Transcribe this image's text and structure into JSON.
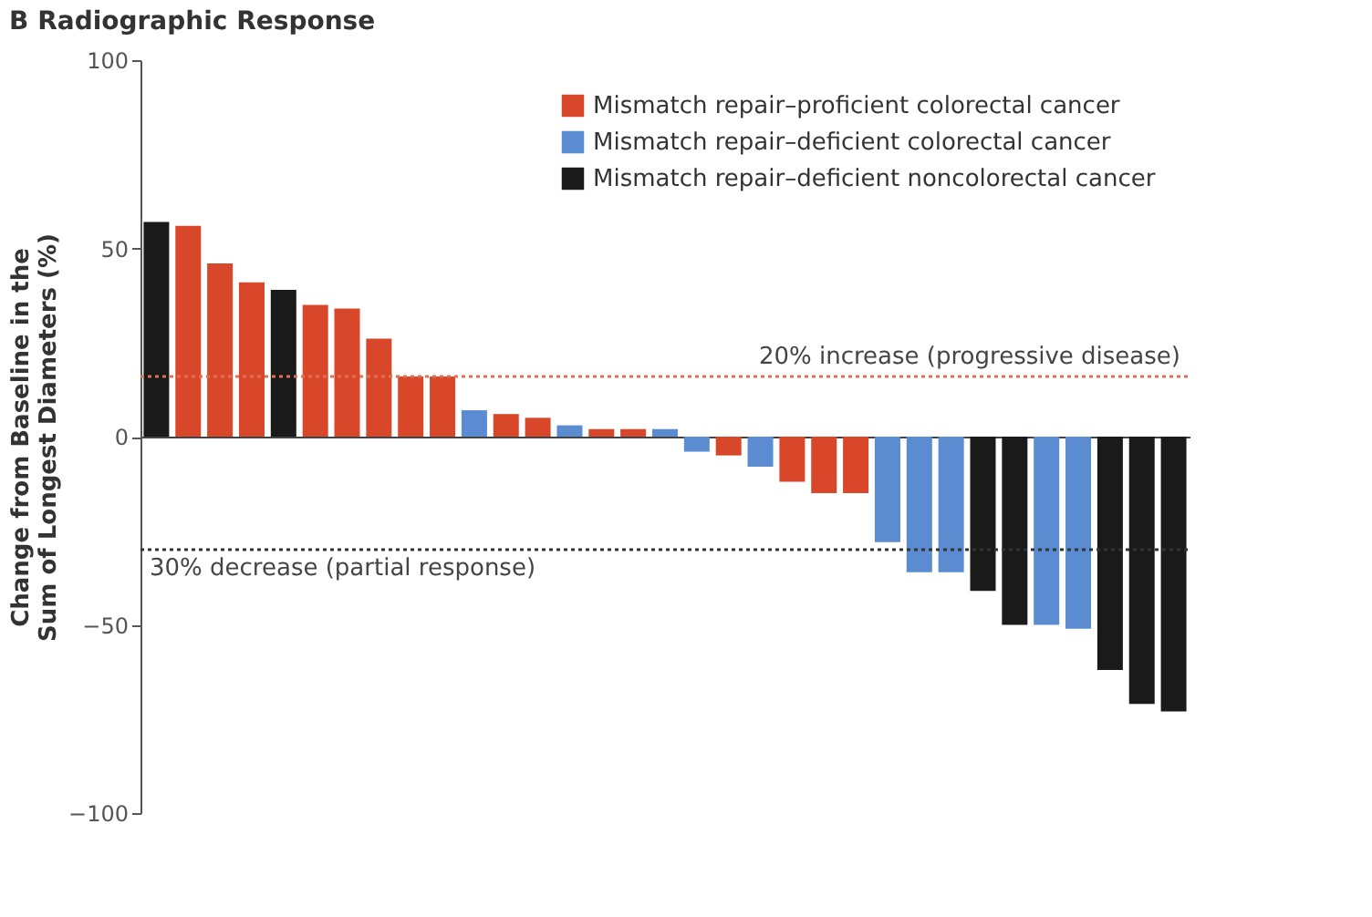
{
  "chart_data": {
    "type": "bar",
    "title": "B Radiographic Response",
    "ylabel": "Change from Baseline in the Sum of Longest Diameters (%)",
    "categories": [
      null,
      null,
      null,
      null,
      null,
      null,
      null,
      null,
      null,
      null,
      null,
      null,
      null,
      null,
      null,
      null,
      null,
      null,
      null,
      null,
      null,
      null,
      null,
      null,
      null,
      null,
      null,
      null,
      null,
      null,
      null,
      null,
      null
    ],
    "series": [
      {
        "name": "Mismatch repair–proficient colorectal cancer",
        "color": "#d9472b",
        "values": [
          null,
          56,
          46,
          41,
          null,
          35,
          34,
          26,
          16,
          16,
          null,
          6,
          5,
          null,
          2,
          2,
          null,
          null,
          -5,
          null,
          -12,
          -15,
          -15,
          null,
          null,
          null,
          null,
          null,
          null,
          null,
          null,
          null,
          null
        ]
      },
      {
        "name": "Mismatch repair–deficient colorectal cancer",
        "color": "#5b8bd0",
        "values": [
          null,
          null,
          null,
          null,
          null,
          null,
          null,
          null,
          null,
          null,
          7,
          null,
          null,
          3,
          null,
          null,
          2,
          -4,
          null,
          -8,
          null,
          null,
          null,
          -28,
          -36,
          -36,
          null,
          null,
          -50,
          -51,
          null,
          null,
          null
        ]
      },
      {
        "name": "Mismatch repair–deficient noncolorectal cancer",
        "color": "#1a1a1a",
        "values": [
          57,
          null,
          null,
          null,
          39,
          null,
          null,
          null,
          null,
          null,
          null,
          null,
          null,
          null,
          null,
          null,
          null,
          null,
          null,
          null,
          null,
          null,
          null,
          null,
          null,
          null,
          -41,
          -50,
          null,
          null,
          -62,
          -71,
          -73
        ]
      }
    ],
    "ylim": [
      -100,
      100
    ],
    "yticks": [
      -100,
      -50,
      0,
      50,
      100
    ],
    "legend": "top right",
    "tick_labels": "y",
    "ref_lines": [
      {
        "axis": "y",
        "value": 16,
        "label": "20% increase (progressive disease)",
        "color": "#e07050",
        "line_style": "dotted"
      },
      {
        "axis": "y",
        "value": -30,
        "label": "30% decrease (partial response)",
        "color": "#333333",
        "line_style": "dotted"
      }
    ]
  }
}
